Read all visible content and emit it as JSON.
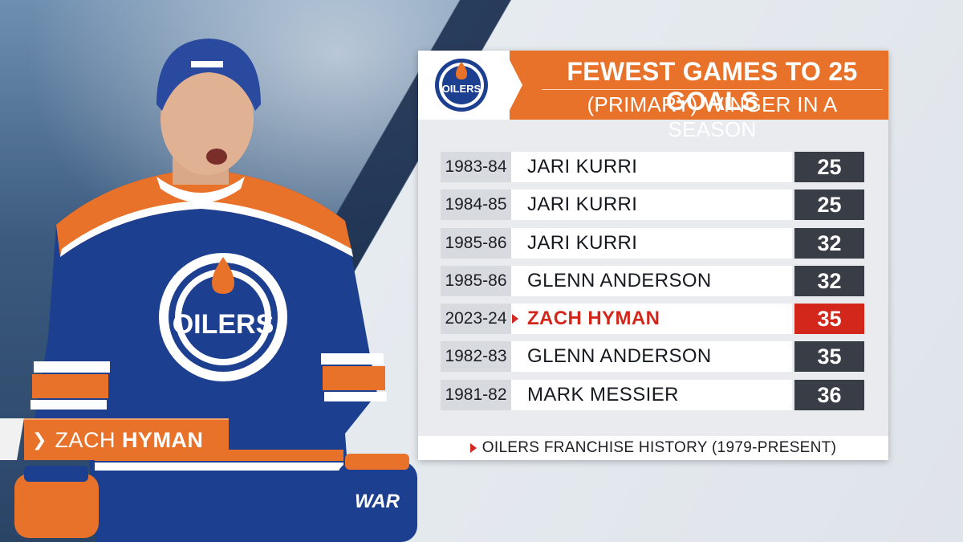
{
  "name_tag": {
    "first": "ZACH",
    "last": "HYMAN"
  },
  "panel": {
    "logo": "OILERS",
    "title": "FEWEST GAMES TO 25 GOALS",
    "subtitle": "(PRIMARY) WINGER IN A SEASON",
    "rows": [
      {
        "season": "1983-84",
        "player": "JARI KURRI",
        "games": "25"
      },
      {
        "season": "1984-85",
        "player": "JARI KURRI",
        "games": "25"
      },
      {
        "season": "1985-86",
        "player": "JARI KURRI",
        "games": "32"
      },
      {
        "season": "1985-86",
        "player": "GLENN ANDERSON",
        "games": "32"
      },
      {
        "season": "2023-24",
        "player": "ZACH HYMAN",
        "games": "35"
      },
      {
        "season": "1982-83",
        "player": "GLENN ANDERSON",
        "games": "35"
      },
      {
        "season": "1981-82",
        "player": "MARK MESSIER",
        "games": "36"
      }
    ],
    "footer": "OILERS FRANCHISE HISTORY (1979-PRESENT)"
  },
  "jersey": {
    "logo": "OILERS",
    "glove": "WAR"
  },
  "colors": {
    "orange": "#e8722a",
    "navy": "#1c3f8f",
    "highlight": "#d3271c",
    "dark": "#383d46"
  }
}
